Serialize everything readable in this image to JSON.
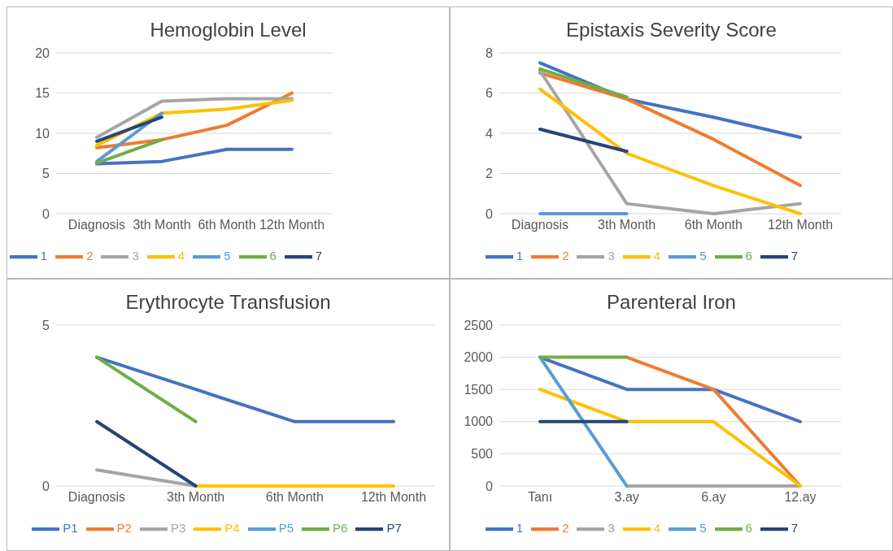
{
  "chart_data": [
    {
      "type": "line",
      "title": "Hemoglobin Level",
      "categories": [
        "Diagnosis",
        "3th Month",
        "6th Month",
        "12th Month"
      ],
      "ylim": [
        0,
        20
      ],
      "yticks": [
        0,
        5,
        10,
        15,
        20
      ],
      "grid": "y",
      "legend": "bottom",
      "marker": "none",
      "series": [
        {
          "name": "1",
          "color": "#4472c4",
          "values": [
            6.2,
            6.5,
            8,
            8
          ]
        },
        {
          "name": "2",
          "color": "#ed7d31",
          "values": [
            8.2,
            9.2,
            11,
            15
          ]
        },
        {
          "name": "3",
          "color": "#a5a5a5",
          "values": [
            9.5,
            14,
            14.3,
            14.3
          ]
        },
        {
          "name": "4",
          "color": "#ffc000",
          "values": [
            8.5,
            12.5,
            13,
            14.1
          ]
        },
        {
          "name": "5",
          "color": "#5b9bd5",
          "values": [
            6.5,
            12.5,
            null,
            null
          ]
        },
        {
          "name": "6",
          "color": "#70ad47",
          "values": [
            6.3,
            9.2,
            null,
            null
          ]
        },
        {
          "name": "7",
          "color": "#264478",
          "values": [
            9,
            12,
            null,
            null
          ]
        }
      ]
    },
    {
      "type": "line",
      "title": "Epistaxis Severity Score",
      "categories": [
        "Diagnosis",
        "3th Month",
        "6th Month",
        "12th Month"
      ],
      "ylim": [
        0,
        8
      ],
      "yticks": [
        0,
        2,
        4,
        6,
        8
      ],
      "grid": "y",
      "legend": "bottom",
      "marker": "none",
      "series": [
        {
          "name": "1",
          "color": "#4472c4",
          "values": [
            7.5,
            5.7,
            4.8,
            3.8
          ]
        },
        {
          "name": "2",
          "color": "#ed7d31",
          "values": [
            7,
            5.7,
            3.7,
            1.4
          ]
        },
        {
          "name": "3",
          "color": "#a5a5a5",
          "values": [
            7.1,
            0.5,
            0,
            0.5
          ]
        },
        {
          "name": "4",
          "color": "#ffc000",
          "values": [
            6.2,
            3,
            1.4,
            0
          ]
        },
        {
          "name": "5",
          "color": "#5b9bd5",
          "values": [
            0,
            0,
            null,
            null
          ]
        },
        {
          "name": "6",
          "color": "#70ad47",
          "values": [
            7.2,
            5.8,
            null,
            null
          ]
        },
        {
          "name": "7",
          "color": "#264478",
          "values": [
            4.2,
            3.1,
            null,
            null
          ]
        }
      ]
    },
    {
      "type": "line",
      "title": "Erythrocyte Transfusion",
      "categories": [
        "Diagnosis",
        "3th Month",
        "6th Month",
        "12th Month"
      ],
      "ylim": [
        0,
        5
      ],
      "yticks": [
        0,
        5
      ],
      "grid": "y",
      "legend": "bottom",
      "marker": "none",
      "series": [
        {
          "name": "P1",
          "color": "#4472c4",
          "values": [
            4,
            3,
            2,
            2
          ]
        },
        {
          "name": "P2",
          "color": "#ed7d31",
          "values": [
            null,
            null,
            null,
            null
          ]
        },
        {
          "name": "P3",
          "color": "#a5a5a5",
          "values": [
            0.5,
            0,
            null,
            null
          ]
        },
        {
          "name": "P4",
          "color": "#ffc000",
          "values": [
            null,
            0,
            0,
            0
          ]
        },
        {
          "name": "P5",
          "color": "#5b9bd5",
          "values": [
            null,
            null,
            null,
            null
          ]
        },
        {
          "name": "P6",
          "color": "#70ad47",
          "values": [
            4,
            2,
            null,
            null
          ]
        },
        {
          "name": "P7",
          "color": "#264478",
          "values": [
            2,
            0,
            null,
            null
          ]
        }
      ]
    },
    {
      "type": "line",
      "title": "Parenteral Iron",
      "categories": [
        "Tanı",
        "3.ay",
        "6.ay",
        "12.ay"
      ],
      "ylim": [
        0,
        2500
      ],
      "yticks": [
        0,
        500,
        1000,
        1500,
        2000,
        2500
      ],
      "grid": "y",
      "legend": "bottom",
      "marker": "none",
      "series": [
        {
          "name": "1",
          "color": "#4472c4",
          "values": [
            2000,
            1500,
            1500,
            1000
          ]
        },
        {
          "name": "2",
          "color": "#ed7d31",
          "values": [
            null,
            2000,
            1500,
            0
          ]
        },
        {
          "name": "3",
          "color": "#a5a5a5",
          "values": [
            null,
            0,
            0,
            0
          ]
        },
        {
          "name": "4",
          "color": "#ffc000",
          "values": [
            1500,
            1000,
            1000,
            0
          ]
        },
        {
          "name": "5",
          "color": "#5b9bd5",
          "values": [
            2000,
            0,
            null,
            null
          ]
        },
        {
          "name": "6",
          "color": "#70ad47",
          "values": [
            2000,
            2000,
            null,
            null
          ]
        },
        {
          "name": "7",
          "color": "#264478",
          "values": [
            1000,
            1000,
            null,
            null
          ]
        }
      ]
    }
  ]
}
